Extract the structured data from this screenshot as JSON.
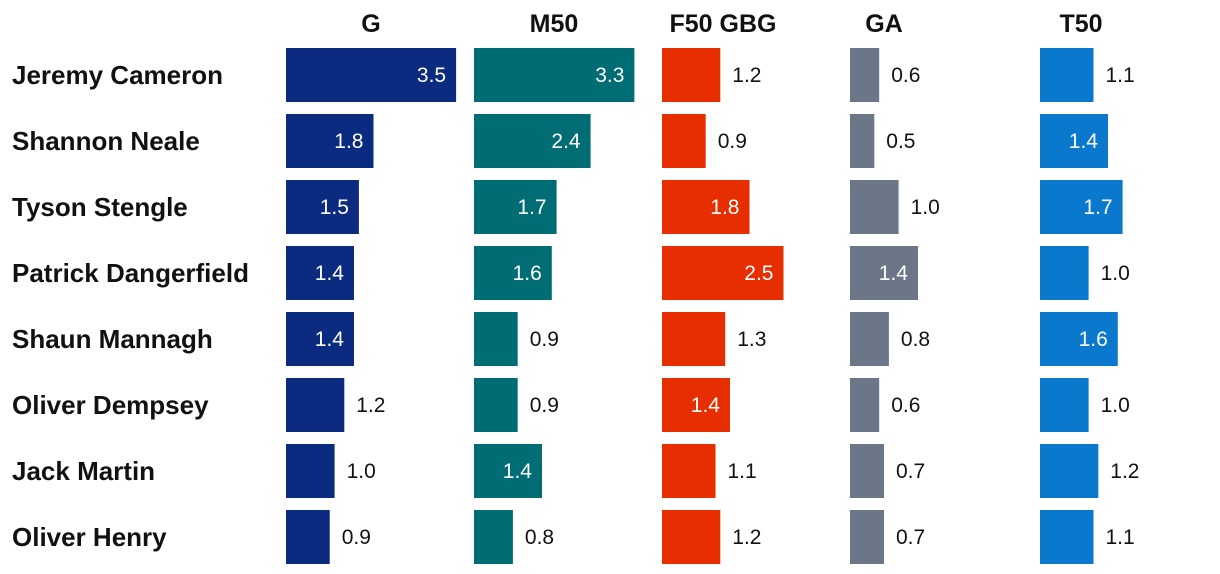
{
  "chart_data": {
    "type": "bar",
    "categories": [
      "Jeremy Cameron",
      "Shannon Neale",
      "Tyson Stengle",
      "Patrick Dangerfield",
      "Shaun Mannagh",
      "Oliver Dempsey",
      "Jack Martin",
      "Oliver Henry"
    ],
    "series": [
      {
        "name": "G",
        "color": "#0a2b7f",
        "values": [
          3.5,
          1.8,
          1.5,
          1.4,
          1.4,
          1.2,
          1.0,
          0.9
        ]
      },
      {
        "name": "M50",
        "color": "#006d75",
        "values": [
          3.3,
          2.4,
          1.7,
          1.6,
          0.9,
          0.9,
          1.4,
          0.8
        ]
      },
      {
        "name": "F50 GBG",
        "color": "#e62e00",
        "values": [
          1.2,
          0.9,
          1.8,
          2.5,
          1.3,
          1.4,
          1.1,
          1.2
        ]
      },
      {
        "name": "GA",
        "color": "#6b7689",
        "values": [
          0.6,
          0.5,
          1.0,
          1.4,
          0.8,
          0.6,
          0.7,
          0.7
        ]
      },
      {
        "name": "T50",
        "color": "#0a78cc",
        "values": [
          1.1,
          1.4,
          1.7,
          1.0,
          1.6,
          1.0,
          1.2,
          1.1
        ]
      }
    ],
    "value_labels": [
      [
        "3.5",
        "1.8",
        "1.5",
        "1.4",
        "1.4",
        "1.2",
        "1.0",
        "0.9"
      ],
      [
        "3.3",
        "2.4",
        "1.7",
        "1.6",
        "0.9",
        "0.9",
        "1.4",
        "0.8"
      ],
      [
        "1.2",
        "0.9",
        "1.8",
        "2.5",
        "1.3",
        "1.4",
        "1.1",
        "1.2"
      ],
      [
        "0.6",
        "0.5",
        "1.0",
        "1.4",
        "0.8",
        "0.6",
        "0.7",
        "0.7"
      ],
      [
        "1.1",
        "1.4",
        "1.7",
        "1.0",
        "1.6",
        "1.0",
        "1.2",
        "1.1"
      ]
    ],
    "title": "",
    "xlabel": "",
    "ylabel": "",
    "grid": false,
    "legend": "none"
  }
}
